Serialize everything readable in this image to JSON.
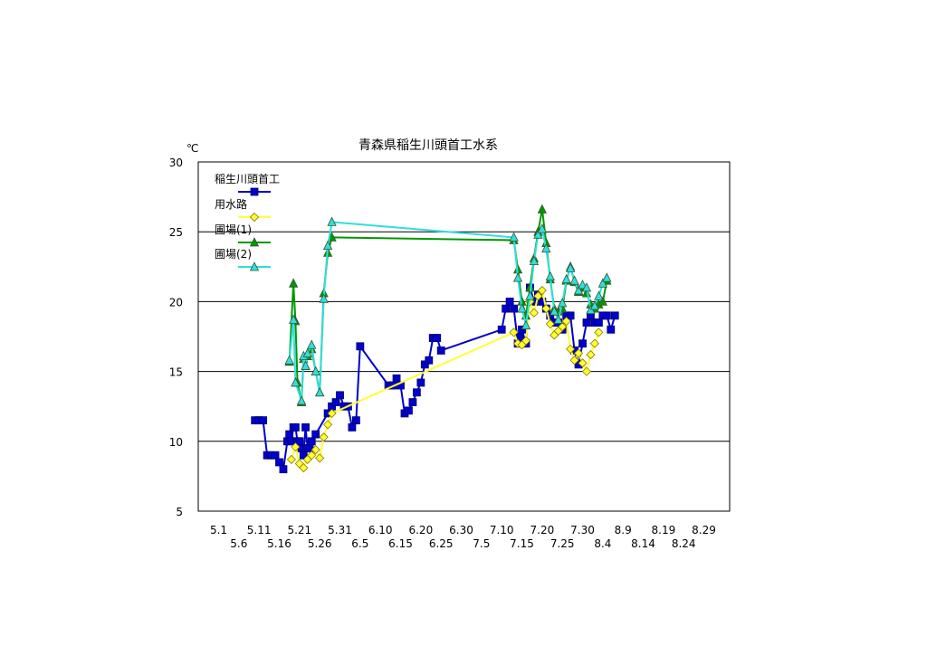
{
  "chart_data": {
    "type": "line",
    "title": "青森県稲生川頭首工水系",
    "ylabel": "℃",
    "xlabel": "",
    "ylim": [
      5,
      30
    ],
    "xlim": [
      "5.1",
      "9.1"
    ],
    "y_ticks": [
      "5",
      "10",
      "15",
      "20",
      "25",
      "30"
    ],
    "x_ticks_upper": [
      "5.1",
      "5.11",
      "5.21",
      "5.31",
      "6.10",
      "6.20",
      "6.30",
      "7.10",
      "7.20",
      "7.30",
      "8.9",
      "8.19",
      "8.29"
    ],
    "x_ticks_lower": [
      "5.6",
      "5.16",
      "5.26",
      "6.5",
      "6.15",
      "6.25",
      "7.5",
      "7.15",
      "7.25",
      "8.4",
      "8.14",
      "8.24"
    ],
    "grid": "horizontal",
    "legend_position": "top-left",
    "series": [
      {
        "name": "稲生川頭首工",
        "color": "#0000cc",
        "marker": "square",
        "points": [
          [
            "5.10.0",
            11.5
          ],
          [
            "5.11.0",
            11.5
          ],
          [
            "5.12.0",
            11.5
          ],
          [
            "5.13.0",
            9.0
          ],
          [
            "5.14.0",
            9.0
          ],
          [
            "5.15.0",
            9.0
          ],
          [
            "5.16.0",
            8.5
          ],
          [
            "5.17.0",
            8.0
          ],
          [
            "5.18.0",
            10.0
          ],
          [
            "5.18.5",
            10.5
          ],
          [
            "5.19.0",
            10.0
          ],
          [
            "5.19.5",
            11.0
          ],
          [
            "5.20.0",
            11.0
          ],
          [
            "5.20.5",
            10.0
          ],
          [
            "5.21.0",
            10.0
          ],
          [
            "5.21.5",
            9.5
          ],
          [
            "5.22.0",
            9.0
          ],
          [
            "5.22.5",
            11.0
          ],
          [
            "5.23.0",
            9.5
          ],
          [
            "5.23.5",
            9.5
          ],
          [
            "5.24.0",
            10.0
          ],
          [
            "5.25.0",
            10.5
          ],
          [
            "5.28.0",
            12.0
          ],
          [
            "5.29.0",
            12.5
          ],
          [
            "5.30.0",
            12.8
          ],
          [
            "5.31.0",
            13.3
          ],
          [
            "6.1.0",
            12.5
          ],
          [
            "6.2.0",
            12.5
          ],
          [
            "6.3.0",
            11.0
          ],
          [
            "6.4.0",
            11.5
          ],
          [
            "6.5.0",
            16.8
          ],
          [
            "6.12.0",
            14.0
          ],
          [
            "6.13.0",
            14.0
          ],
          [
            "6.14.0",
            14.5
          ],
          [
            "6.15.0",
            14.0
          ],
          [
            "6.16.0",
            12.0
          ],
          [
            "6.17.0",
            12.2
          ],
          [
            "6.18.0",
            12.8
          ],
          [
            "6.19.0",
            13.5
          ],
          [
            "6.20.0",
            14.2
          ],
          [
            "6.21.0",
            15.5
          ],
          [
            "6.22.0",
            15.8
          ],
          [
            "6.23.0",
            17.4
          ],
          [
            "6.24.0",
            17.4
          ],
          [
            "6.25.0",
            16.5
          ],
          [
            "7.10.0",
            18.0
          ],
          [
            "7.11.0",
            19.5
          ],
          [
            "7.12.0",
            20.0
          ],
          [
            "7.13.0",
            19.5
          ],
          [
            "7.14.0",
            17.0
          ],
          [
            "7.14.5",
            17.5
          ],
          [
            "7.15.0",
            18.0
          ],
          [
            "7.16.0",
            17.0
          ],
          [
            "7.17.0",
            21.0
          ],
          [
            "7.18.0",
            20.0
          ],
          [
            "7.19.0",
            20.5
          ],
          [
            "7.20.0",
            20.0
          ],
          [
            "7.21.0",
            19.5
          ],
          [
            "7.22.0",
            19.0
          ],
          [
            "7.23.0",
            18.5
          ],
          [
            "7.24.0",
            18.5
          ],
          [
            "7.25.0",
            18.0
          ],
          [
            "7.26.0",
            19.0
          ],
          [
            "7.27.0",
            19.0
          ],
          [
            "7.28.0",
            16.5
          ],
          [
            "7.29.0",
            15.5
          ],
          [
            "7.30.0",
            17.0
          ],
          [
            "7.31.0",
            18.5
          ],
          [
            "8.1.0",
            19.0
          ],
          [
            "8.2.0",
            18.5
          ],
          [
            "8.3.0",
            18.5
          ],
          [
            "8.4.0",
            19.0
          ],
          [
            "8.5.0",
            19.0
          ],
          [
            "8.6.0",
            18.0
          ],
          [
            "8.7.0",
            19.0
          ]
        ]
      },
      {
        "name": "用水路",
        "color": "#ffff33",
        "marker": "diamond",
        "points": [
          [
            "5.19.0",
            8.7
          ],
          [
            "5.20.0",
            9.6
          ],
          [
            "5.21.0",
            8.4
          ],
          [
            "5.22.0",
            8.1
          ],
          [
            "5.23.0",
            8.7
          ],
          [
            "5.24.0",
            9.0
          ],
          [
            "5.25.0",
            9.4
          ],
          [
            "5.26.0",
            8.8
          ],
          [
            "5.27.0",
            10.3
          ],
          [
            "5.28.0",
            11.2
          ],
          [
            "5.29.0",
            12.0
          ],
          [
            "7.13.0",
            17.8
          ],
          [
            "7.14.0",
            17.0
          ],
          [
            "7.15.0",
            16.9
          ],
          [
            "7.16.0",
            17.2
          ],
          [
            "7.17.0",
            20.0
          ],
          [
            "7.18.0",
            19.2
          ],
          [
            "7.19.0",
            20.4
          ],
          [
            "7.20.0",
            20.8
          ],
          [
            "7.21.0",
            19.5
          ],
          [
            "7.22.0",
            18.4
          ],
          [
            "7.23.0",
            17.6
          ],
          [
            "7.24.0",
            17.9
          ],
          [
            "7.25.0",
            18.2
          ],
          [
            "7.26.0",
            18.6
          ],
          [
            "7.27.0",
            16.6
          ],
          [
            "7.28.0",
            15.8
          ],
          [
            "7.29.0",
            16.3
          ],
          [
            "7.30.0",
            15.6
          ],
          [
            "7.31.0",
            15.0
          ],
          [
            "8.1.0",
            16.2
          ],
          [
            "8.2.0",
            17.0
          ],
          [
            "8.3.0",
            17.8
          ]
        ]
      },
      {
        "name": "圃場(1)",
        "color": "#009900",
        "marker": "triangle",
        "points": [
          [
            "5.18.5",
            15.7
          ],
          [
            "5.19.5",
            21.3
          ],
          [
            "5.20.0",
            18.6
          ],
          [
            "5.20.5",
            14.2
          ],
          [
            "5.21.5",
            12.8
          ],
          [
            "5.22.0",
            15.9
          ],
          [
            "5.22.5",
            15.4
          ],
          [
            "5.23.0",
            16.1
          ],
          [
            "5.24.0",
            16.6
          ],
          [
            "5.25.0",
            15.0
          ],
          [
            "5.26.0",
            13.5
          ],
          [
            "5.27.0",
            20.6
          ],
          [
            "5.28.0",
            23.5
          ],
          [
            "5.29.0",
            24.6
          ],
          [
            "7.13.0",
            24.4
          ],
          [
            "7.14.0",
            22.3
          ],
          [
            "7.15.0",
            20.0
          ],
          [
            "7.16.0",
            19.0
          ],
          [
            "7.17.0",
            21.0
          ],
          [
            "7.18.0",
            23.1
          ],
          [
            "7.19.0",
            25.0
          ],
          [
            "7.20.0",
            26.6
          ],
          [
            "7.21.0",
            24.2
          ],
          [
            "7.22.0",
            21.6
          ],
          [
            "7.23.0",
            19.5
          ],
          [
            "7.24.0",
            19.3
          ],
          [
            "7.25.0",
            19.5
          ],
          [
            "7.26.0",
            21.5
          ],
          [
            "7.27.0",
            22.5
          ],
          [
            "7.28.0",
            21.4
          ],
          [
            "7.29.0",
            20.7
          ],
          [
            "7.30.0",
            21.0
          ],
          [
            "7.31.0",
            20.6
          ],
          [
            "8.1.0",
            19.8
          ],
          [
            "8.2.0",
            19.5
          ],
          [
            "8.3.0",
            19.8
          ],
          [
            "8.4.0",
            20.0
          ],
          [
            "8.5.0",
            21.5
          ]
        ]
      },
      {
        "name": "圃場(2)",
        "color": "#33dddd",
        "marker": "triangle",
        "points": [
          [
            "5.18.5",
            15.8
          ],
          [
            "5.19.5",
            18.7
          ],
          [
            "5.20.0",
            14.2
          ],
          [
            "5.21.5",
            12.9
          ],
          [
            "5.22.0",
            16.1
          ],
          [
            "5.22.5",
            15.4
          ],
          [
            "5.23.0",
            16.3
          ],
          [
            "5.24.0",
            16.9
          ],
          [
            "5.25.0",
            15.0
          ],
          [
            "5.26.0",
            13.5
          ],
          [
            "5.27.0",
            20.2
          ],
          [
            "5.28.0",
            24.0
          ],
          [
            "5.29.0",
            25.7
          ],
          [
            "7.13.0",
            24.6
          ],
          [
            "7.14.0",
            21.7
          ],
          [
            "7.15.0",
            19.5
          ],
          [
            "7.16.0",
            18.3
          ],
          [
            "7.17.0",
            20.4
          ],
          [
            "7.18.0",
            22.9
          ],
          [
            "7.19.0",
            24.8
          ],
          [
            "7.20.0",
            25.2
          ],
          [
            "7.21.0",
            23.8
          ],
          [
            "7.22.0",
            21.8
          ],
          [
            "7.23.0",
            19.3
          ],
          [
            "7.24.0",
            18.7
          ],
          [
            "7.25.0",
            19.9
          ],
          [
            "7.26.0",
            21.6
          ],
          [
            "7.27.0",
            22.4
          ],
          [
            "7.28.0",
            21.5
          ],
          [
            "7.29.0",
            20.8
          ],
          [
            "7.30.0",
            21.2
          ],
          [
            "7.31.0",
            21.0
          ],
          [
            "8.1.0",
            19.4
          ],
          [
            "8.2.0",
            19.7
          ],
          [
            "8.3.0",
            20.4
          ],
          [
            "8.4.0",
            21.3
          ],
          [
            "8.5.0",
            21.7
          ]
        ]
      }
    ]
  }
}
